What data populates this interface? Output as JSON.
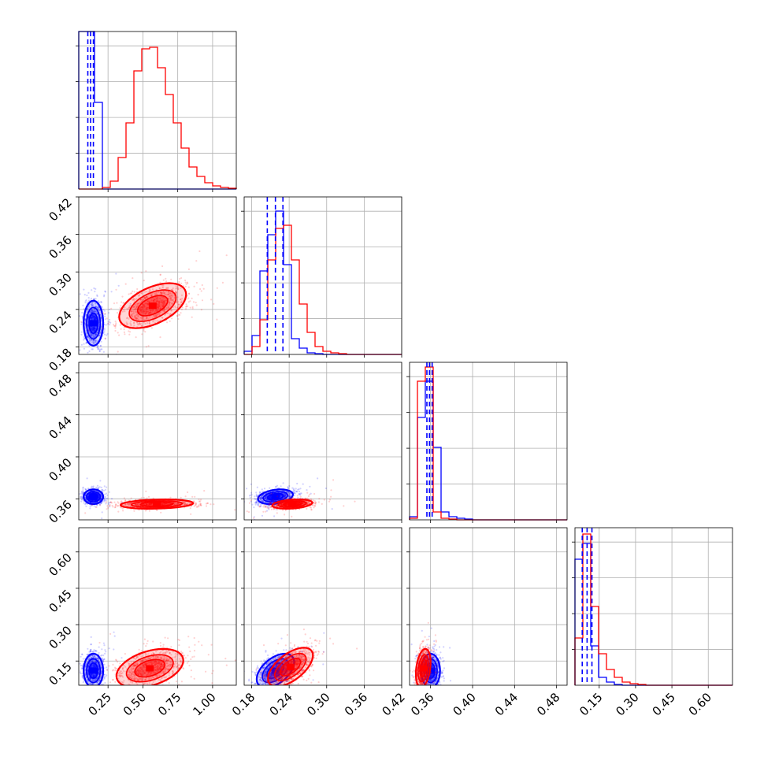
{
  "chart_data": {
    "type": "corner",
    "parameters": 4,
    "grid": true,
    "colors": {
      "series_a": "#0000ff",
      "series_b": "#ff0000"
    },
    "axes": [
      {
        "range": [
          0.04,
          1.17
        ],
        "ticks": [
          0.25,
          0.5,
          0.75,
          1.0
        ],
        "tick_labels": [
          "0.25",
          "0.50",
          "0.75",
          "1.00"
        ]
      },
      {
        "range": [
          0.168,
          0.42
        ],
        "ticks": [
          0.18,
          0.24,
          0.3,
          0.36,
          0.42
        ],
        "tick_labels": [
          "0.18",
          "0.24",
          "0.30",
          "0.36",
          "0.42"
        ]
      },
      {
        "range": [
          0.34,
          0.49
        ],
        "ticks": [
          0.36,
          0.4,
          0.44,
          0.48
        ],
        "tick_labels": [
          "0.36",
          "0.40",
          "0.44",
          "0.48"
        ]
      },
      {
        "range": [
          0.05,
          0.7
        ],
        "ticks": [
          0.15,
          0.3,
          0.45,
          0.6
        ],
        "tick_labels": [
          "0.15",
          "0.30",
          "0.45",
          "0.60"
        ]
      }
    ],
    "histograms": [
      {
        "bins": 20,
        "series": [
          {
            "color_key": "series_a",
            "counts": [
              1.0,
              1.0,
              0.55,
              0,
              0,
              0,
              0,
              0,
              0,
              0,
              0,
              0,
              0,
              0,
              0,
              0,
              0,
              0,
              0,
              0
            ]
          },
          {
            "color_key": "series_b",
            "counts": [
              0,
              0,
              0,
              0.01,
              0.05,
              0.2,
              0.42,
              0.75,
              0.89,
              0.9,
              0.77,
              0.6,
              0.42,
              0.26,
              0.14,
              0.08,
              0.04,
              0.02,
              0.01,
              0.005
            ]
          }
        ],
        "quantiles": [
          0.105,
          0.125,
          0.145
        ]
      },
      {
        "bins": 20,
        "series": [
          {
            "color_key": "series_a",
            "counts": [
              0.02,
              0.12,
              0.53,
              0.76,
              0.91,
              0.57,
              0.1,
              0.04,
              0.01,
              0.005,
              0,
              0,
              0,
              0,
              0,
              0,
              0,
              0,
              0,
              0
            ]
          },
          {
            "color_key": "series_b",
            "counts": [
              0,
              0.05,
              0.22,
              0.6,
              0.8,
              0.82,
              0.6,
              0.32,
              0.14,
              0.05,
              0.02,
              0.01,
              0.005,
              0,
              0,
              0,
              0,
              0,
              0,
              0
            ]
          }
        ],
        "quantiles": [
          0.205,
          0.218,
          0.23
        ]
      },
      {
        "bins": 20,
        "series": [
          {
            "color_key": "series_a",
            "counts": [
              0.02,
              0.65,
              0.88,
              0.46,
              0.05,
              0.02,
              0.01,
              0.005,
              0,
              0,
              0,
              0,
              0,
              0,
              0,
              0,
              0,
              0,
              0,
              0
            ]
          },
          {
            "color_key": "series_b",
            "counts": [
              0.01,
              0.88,
              0.97,
              0.05,
              0.01,
              0.005,
              0,
              0,
              0,
              0,
              0,
              0,
              0,
              0,
              0,
              0,
              0,
              0,
              0,
              0
            ]
          }
        ],
        "quantiles": [
          0.3565,
          0.359,
          0.3615
        ]
      },
      {
        "bins": 20,
        "series": [
          {
            "color_key": "series_a",
            "counts": [
              0.8,
              0.9,
              0.25,
              0.05,
              0.02,
              0.005,
              0,
              0,
              0,
              0,
              0,
              0,
              0,
              0,
              0,
              0,
              0,
              0,
              0,
              0
            ]
          },
          {
            "color_key": "series_b",
            "counts": [
              0.3,
              0.96,
              0.5,
              0.2,
              0.1,
              0.05,
              0.02,
              0.01,
              0.005,
              0,
              0,
              0,
              0,
              0,
              0,
              0,
              0,
              0,
              0,
              0
            ]
          }
        ],
        "quantiles": [
          0.08,
          0.1,
          0.12
        ]
      }
    ],
    "pair_plots": [
      {
        "x_param": 0,
        "y_param": 1,
        "clusters": [
          {
            "color_key": "series_a",
            "mean": [
              0.145,
              0.218
            ],
            "sd": [
              0.035,
              0.018
            ],
            "corr": 0.0
          },
          {
            "color_key": "series_b",
            "mean": [
              0.57,
              0.246
            ],
            "sd": [
              0.12,
              0.018
            ],
            "corr": 0.5
          }
        ]
      },
      {
        "x_param": 0,
        "y_param": 2,
        "clusters": [
          {
            "color_key": "series_a",
            "mean": [
              0.145,
              0.362
            ],
            "sd": [
              0.035,
              0.0035
            ],
            "corr": 0.0
          },
          {
            "color_key": "series_b",
            "mean": [
              0.6,
              0.355
            ],
            "sd": [
              0.13,
              0.0022
            ],
            "corr": 0.2
          }
        ]
      },
      {
        "x_param": 1,
        "y_param": 2,
        "clusters": [
          {
            "color_key": "series_a",
            "mean": [
              0.218,
              0.362
            ],
            "sd": [
              0.014,
              0.0035
            ],
            "corr": 0.3
          },
          {
            "color_key": "series_b",
            "mean": [
              0.245,
              0.355
            ],
            "sd": [
              0.016,
              0.0022
            ],
            "corr": 0.3
          }
        ]
      },
      {
        "x_param": 0,
        "y_param": 3,
        "clusters": [
          {
            "color_key": "series_a",
            "mean": [
              0.145,
              0.11
            ],
            "sd": [
              0.035,
              0.035
            ],
            "corr": 0.0
          },
          {
            "color_key": "series_b",
            "mean": [
              0.55,
              0.12
            ],
            "sd": [
              0.12,
              0.04
            ],
            "corr": 0.4
          }
        ]
      },
      {
        "x_param": 1,
        "y_param": 3,
        "clusters": [
          {
            "color_key": "series_a",
            "mean": [
              0.218,
              0.11
            ],
            "sd": [
              0.015,
              0.035
            ],
            "corr": 0.5
          },
          {
            "color_key": "series_b",
            "mean": [
              0.242,
              0.125
            ],
            "sd": [
              0.018,
              0.04
            ],
            "corr": 0.6
          }
        ]
      },
      {
        "x_param": 2,
        "y_param": 3,
        "clusters": [
          {
            "color_key": "series_a",
            "mean": [
              0.36,
              0.11
            ],
            "sd": [
              0.0045,
              0.035
            ],
            "corr": 0.0
          },
          {
            "color_key": "series_b",
            "mean": [
              0.353,
              0.12
            ],
            "sd": [
              0.0035,
              0.04
            ],
            "corr": 0.3
          }
        ]
      }
    ]
  }
}
